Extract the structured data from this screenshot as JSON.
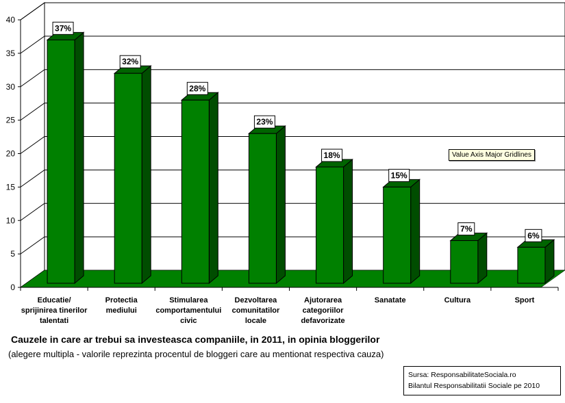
{
  "colors": {
    "bar_front": "#008000",
    "bar_side": "#004d00",
    "bar_top": "#006400",
    "floor": "#008000",
    "gridline": "#000000",
    "label_bg": "#ffffff"
  },
  "chart_data": {
    "type": "bar",
    "title": "",
    "categories": [
      [
        "Educatie/",
        "sprijinirea tinerilor",
        "talentati"
      ],
      [
        "Protectia",
        "mediului"
      ],
      [
        "Stimularea",
        "comportamentului",
        "civic"
      ],
      [
        "Dezvoltarea",
        "comunitatilor",
        "locale"
      ],
      [
        "Ajutorarea",
        "categoriilor",
        "defavorizate"
      ],
      [
        "Sanatate"
      ],
      [
        "Cultura"
      ],
      [
        "Sport"
      ]
    ],
    "values": [
      37,
      32,
      28,
      23,
      18,
      15,
      7,
      6
    ],
    "data_labels": [
      "37%",
      "32%",
      "28%",
      "23%",
      "18%",
      "15%",
      "7%",
      "6%"
    ],
    "ylim": [
      0,
      40
    ],
    "yticks": [
      "0",
      "5",
      "10",
      "15",
      "20",
      "25",
      "30",
      "35",
      "40"
    ],
    "grid": true,
    "legend": "none",
    "style": "3d-column"
  },
  "caption": {
    "title": "Cauzele in care ar trebui sa investeasca companiile, in 2011, in opinia bloggerilor",
    "subtitle": "(alegere multipla - valorile reprezinta procentul de bloggeri care au mentionat respectiva cauza)"
  },
  "source": {
    "line1": "Sursa: ResponsabilitateSociala.ro",
    "line2": "Bilantul Responsabilitatii Sociale pe 2010"
  },
  "tooltip": {
    "text": "Value Axis Major Gridlines"
  }
}
